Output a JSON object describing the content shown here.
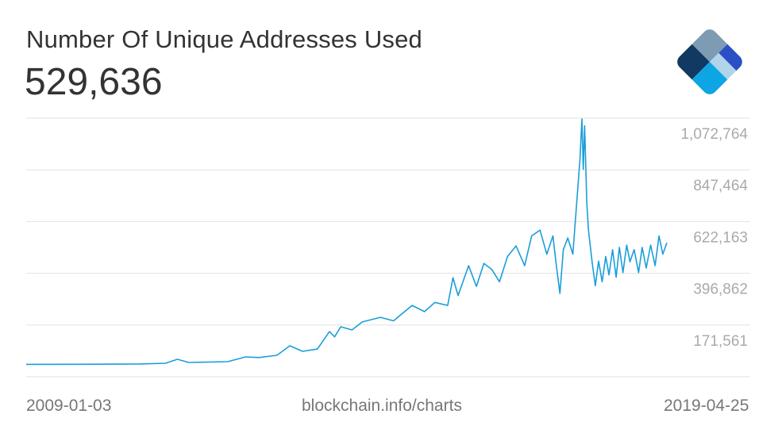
{
  "header": {
    "title": "Number Of Unique Addresses Used",
    "current_value": "529,636"
  },
  "footer": {
    "start_date": "2009-01-03",
    "source": "blockchain.info/charts",
    "end_date": "2019-04-25"
  },
  "logo": {
    "name": "blockchain-logo",
    "colors": [
      "#7d9cb3",
      "#123962",
      "#2b4fc4",
      "#0ea5e4",
      "#b1d4ea"
    ]
  },
  "chart_data": {
    "type": "line",
    "title": "Number Of Unique Addresses Used",
    "xlim": [
      "2009-01-03",
      "2019-04-25"
    ],
    "ylim": [
      -53740,
      1072764
    ],
    "yticks": [
      171561,
      396862,
      622163,
      847464,
      1072764
    ],
    "ytick_labels": [
      "171,561",
      "396,862",
      "622,163",
      "847,464",
      "1,072,764"
    ],
    "grid": true,
    "line_color": "#1a9ed9",
    "series": [
      {
        "points": [
          [
            "2009-01-03",
            0
          ],
          [
            "2009-11-01",
            500
          ],
          [
            "2010-11-01",
            2000
          ],
          [
            "2011-04-01",
            5000
          ],
          [
            "2011-06-10",
            22300
          ],
          [
            "2011-08-15",
            8500
          ],
          [
            "2012-04-01",
            12000
          ],
          [
            "2012-07-15",
            32700
          ],
          [
            "2012-10-01",
            30000
          ],
          [
            "2013-01-15",
            39600
          ],
          [
            "2013-04-01",
            81000
          ],
          [
            "2013-06-15",
            57000
          ],
          [
            "2013-09-10",
            67000
          ],
          [
            "2013-11-20",
            143000
          ],
          [
            "2013-12-20",
            120000
          ],
          [
            "2014-01-25",
            164000
          ],
          [
            "2014-04-01",
            150000
          ],
          [
            "2014-06-01",
            185000
          ],
          [
            "2014-09-15",
            205000
          ],
          [
            "2014-12-01",
            190000
          ],
          [
            "2015-03-20",
            257000
          ],
          [
            "2015-06-01",
            230000
          ],
          [
            "2015-08-01",
            270000
          ],
          [
            "2015-10-15",
            257000
          ],
          [
            "2015-11-15",
            378000
          ],
          [
            "2015-12-15",
            300000
          ],
          [
            "2016-02-15",
            430000
          ],
          [
            "2016-04-01",
            340000
          ],
          [
            "2016-05-15",
            440000
          ],
          [
            "2016-07-01",
            413000
          ],
          [
            "2016-08-15",
            360000
          ],
          [
            "2016-10-01",
            470000
          ],
          [
            "2016-11-20",
            516000
          ],
          [
            "2017-01-10",
            430000
          ],
          [
            "2017-02-20",
            560000
          ],
          [
            "2017-04-10",
            585000
          ],
          [
            "2017-05-20",
            480000
          ],
          [
            "2017-06-25",
            560000
          ],
          [
            "2017-07-15",
            430000
          ],
          [
            "2017-08-05",
            309000
          ],
          [
            "2017-08-25",
            500000
          ],
          [
            "2017-09-20",
            551000
          ],
          [
            "2017-10-20",
            480000
          ],
          [
            "2017-11-10",
            689000
          ],
          [
            "2017-12-01",
            896000
          ],
          [
            "2017-12-12",
            1069000
          ],
          [
            "2017-12-20",
            850000
          ],
          [
            "2017-12-28",
            1040000
          ],
          [
            "2018-01-10",
            700000
          ],
          [
            "2018-01-20",
            585000
          ],
          [
            "2018-02-10",
            447000
          ],
          [
            "2018-03-01",
            343000
          ],
          [
            "2018-03-20",
            450000
          ],
          [
            "2018-04-10",
            360000
          ],
          [
            "2018-05-01",
            470000
          ],
          [
            "2018-05-20",
            390000
          ],
          [
            "2018-06-10",
            500000
          ],
          [
            "2018-07-01",
            380000
          ],
          [
            "2018-07-20",
            510000
          ],
          [
            "2018-08-10",
            400000
          ],
          [
            "2018-09-01",
            520000
          ],
          [
            "2018-09-20",
            447000
          ],
          [
            "2018-10-15",
            500000
          ],
          [
            "2018-11-10",
            400000
          ],
          [
            "2018-12-01",
            510000
          ],
          [
            "2018-12-25",
            420000
          ],
          [
            "2019-01-20",
            520000
          ],
          [
            "2019-02-15",
            430000
          ],
          [
            "2019-03-10",
            560000
          ],
          [
            "2019-04-01",
            480000
          ],
          [
            "2019-04-25",
            529636
          ]
        ]
      }
    ]
  }
}
